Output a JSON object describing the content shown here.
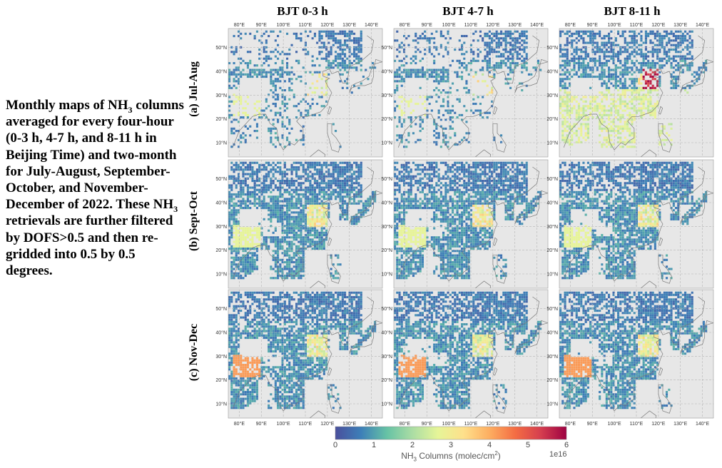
{
  "caption": {
    "part1": "Monthly maps of NH",
    "sub1": "3",
    "part2": " columns averaged for every four-hour (0-3 h, 4-7 h, and 8-11 h in Beijing Time) and two-month for July-August, September-October, and November-December of 2022. These NH",
    "sub2": "3",
    "part3": " retrievals are further filtered by DOFS>0.5 and then re-gridded into 0.5 by 0.5 degrees."
  },
  "columns": [
    "BJT 0-3 h",
    "BJT 4-7 h",
    "BJT 8-11 h"
  ],
  "rows": [
    "(a) Jul-Aug",
    "(b) Sept-Oct",
    "(c) Nov-Dec"
  ],
  "lon_ticks": [
    "80°E",
    "90°E",
    "100°E",
    "110°E",
    "120°E",
    "130°E",
    "140°E"
  ],
  "lat_ticks": [
    "50°N",
    "40°N",
    "30°N",
    "20°N",
    "10°N"
  ],
  "colorbar": {
    "ticks": [
      "0",
      "1",
      "2",
      "3",
      "4",
      "5",
      "6"
    ],
    "label_pre": "NH",
    "label_sub": "3",
    "label_post": " Columns (molec/cm",
    "label_sup": "2",
    "label_end": ")",
    "exponent": "1e16",
    "colormap": [
      "#4a4f9c",
      "#3d7fb8",
      "#66c2a5",
      "#abdda4",
      "#e6f598",
      "#fee08b",
      "#fdae61",
      "#f46d43",
      "#d53e4f",
      "#9e0142"
    ]
  },
  "map_colors": {
    "ocean": "#e7e7e7",
    "grid": "#b5b5b5",
    "coast": "#7a7a7a"
  }
}
